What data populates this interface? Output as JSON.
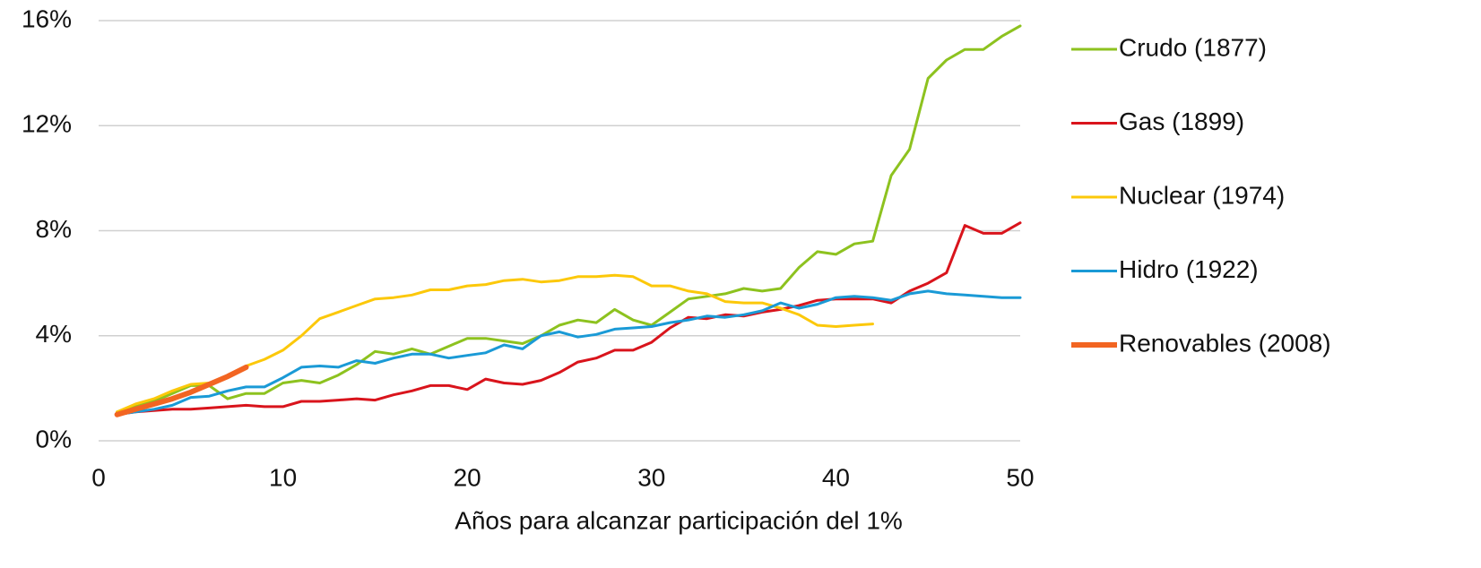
{
  "chart_data": {
    "type": "line",
    "xlabel": "Años para alcanzar participación del 1%",
    "x": [
      1,
      2,
      3,
      4,
      5,
      6,
      7,
      8,
      9,
      10,
      11,
      12,
      13,
      14,
      15,
      16,
      17,
      18,
      19,
      20,
      21,
      22,
      23,
      24,
      25,
      26,
      27,
      28,
      29,
      30,
      31,
      32,
      33,
      34,
      35,
      36,
      37,
      38,
      39,
      40,
      41,
      42,
      43,
      44,
      45,
      46,
      47,
      48,
      49,
      50
    ],
    "series": [
      {
        "name": "Crudo (1877)",
        "color": "#8dc21f",
        "line_width": 3,
        "values": [
          1.1,
          1.3,
          1.5,
          1.8,
          2.1,
          2.1,
          1.6,
          1.8,
          1.8,
          2.2,
          2.3,
          2.2,
          2.5,
          2.9,
          3.4,
          3.3,
          3.5,
          3.3,
          3.6,
          3.9,
          3.9,
          3.8,
          3.7,
          4.0,
          4.4,
          4.6,
          4.5,
          5.0,
          4.6,
          4.4,
          4.9,
          5.4,
          5.5,
          5.6,
          5.8,
          5.7,
          5.8,
          6.6,
          7.2,
          7.1,
          7.5,
          7.6,
          10.1,
          11.1,
          13.8,
          14.5,
          14.9,
          14.9,
          15.4,
          15.8
        ]
      },
      {
        "name": "Gas (1899)",
        "color": "#d9141c",
        "line_width": 3,
        "values": [
          1.0,
          1.1,
          1.15,
          1.2,
          1.2,
          1.25,
          1.3,
          1.35,
          1.3,
          1.3,
          1.5,
          1.5,
          1.55,
          1.6,
          1.55,
          1.75,
          1.9,
          2.1,
          2.1,
          1.95,
          2.35,
          2.2,
          2.15,
          2.3,
          2.6,
          3.0,
          3.15,
          3.45,
          3.45,
          3.75,
          4.3,
          4.7,
          4.65,
          4.8,
          4.75,
          4.9,
          5.0,
          5.15,
          5.35,
          5.4,
          5.4,
          5.4,
          5.25,
          5.7,
          6.0,
          6.4,
          8.2,
          7.9,
          7.9,
          8.3
        ]
      },
      {
        "name": "Nuclear (1974)",
        "color": "#fcc80a",
        "line_width": 3,
        "values": [
          1.1,
          1.4,
          1.6,
          1.9,
          2.15,
          2.2,
          2.4,
          2.85,
          3.1,
          3.45,
          4.0,
          4.65,
          4.9,
          5.15,
          5.4,
          5.45,
          5.55,
          5.75,
          5.75,
          5.9,
          5.95,
          6.1,
          6.15,
          6.05,
          6.1,
          6.25,
          6.25,
          6.3,
          6.25,
          5.9,
          5.9,
          5.7,
          5.6,
          5.3,
          5.25,
          5.25,
          5.05,
          4.8,
          4.4,
          4.35,
          4.4,
          4.45,
          null,
          null,
          null,
          null,
          null,
          null,
          null,
          null
        ]
      },
      {
        "name": "Hidro (1922)",
        "color": "#1a9ad6",
        "line_width": 3,
        "values": [
          1.0,
          1.1,
          1.2,
          1.35,
          1.65,
          1.7,
          1.9,
          2.05,
          2.05,
          2.4,
          2.8,
          2.85,
          2.8,
          3.05,
          2.95,
          3.15,
          3.3,
          3.3,
          3.15,
          3.25,
          3.35,
          3.65,
          3.5,
          4.0,
          4.15,
          3.95,
          4.05,
          4.25,
          4.3,
          4.35,
          4.5,
          4.6,
          4.75,
          4.7,
          4.8,
          4.95,
          5.25,
          5.05,
          5.2,
          5.45,
          5.5,
          5.45,
          5.35,
          5.6,
          5.7,
          5.6,
          5.55,
          5.5,
          5.45,
          5.45
        ]
      },
      {
        "name": "Renovables (2008)",
        "color": "#f26522",
        "line_width": 6,
        "values": [
          1.0,
          1.2,
          1.4,
          1.6,
          1.85,
          2.15,
          2.45,
          2.8,
          null,
          null,
          null,
          null,
          null,
          null,
          null,
          null,
          null,
          null,
          null,
          null,
          null,
          null,
          null,
          null,
          null,
          null,
          null,
          null,
          null,
          null,
          null,
          null,
          null,
          null,
          null,
          null,
          null,
          null,
          null,
          null,
          null,
          null,
          null,
          null,
          null,
          null,
          null,
          null,
          null,
          null
        ]
      }
    ],
    "xlim": [
      0,
      50
    ],
    "xticks": [
      0,
      10,
      20,
      30,
      40,
      50
    ],
    "ylim": [
      0,
      16
    ],
    "yticks": [
      {
        "value": 0,
        "label": "0%"
      },
      {
        "value": 4,
        "label": "4%"
      },
      {
        "value": 8,
        "label": "8%"
      },
      {
        "value": 12,
        "label": "12%"
      },
      {
        "value": 16,
        "label": "16%"
      }
    ],
    "grid": true,
    "legend": "right"
  }
}
